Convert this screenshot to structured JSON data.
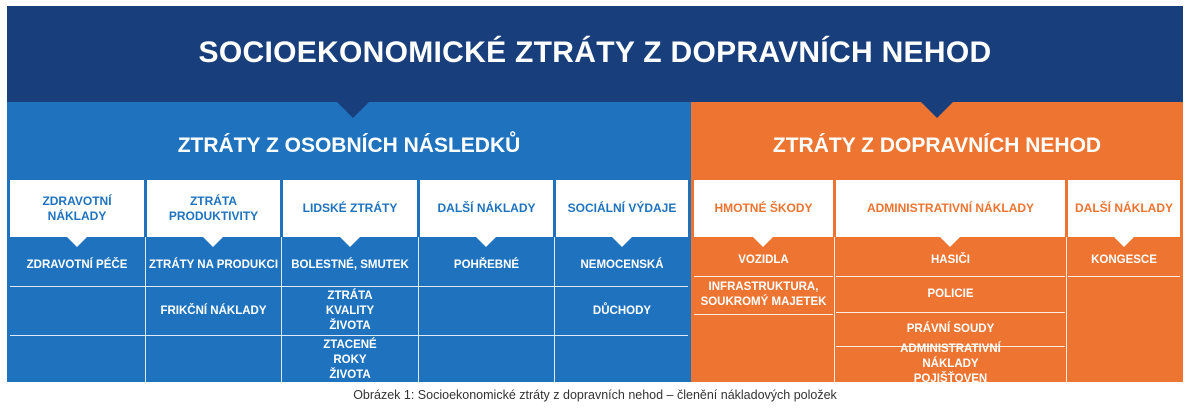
{
  "title": "SOCIOEKONOMICKÉ ZTRÁTY Z DOPRAVNÍCH NEHOD",
  "left_section": {
    "title": "ZTRÁTY Z OSOBNÍCH NÁSLEDKŮ",
    "columns": [
      {
        "header": "ZDRAVOTNÍ NÁKLADY",
        "items": [
          "ZDRAVOTNÍ PÉČE"
        ]
      },
      {
        "header": "ZTRÁTA PRODUKTIVITY",
        "items": [
          "ZTRÁTY NA PRODUKCI",
          "FRIKČNÍ NÁKLADY"
        ]
      },
      {
        "header": "LIDSKÉ ZTRÁTY",
        "items": [
          "BOLESTNÉ, SMUTEK",
          "ZTRÁTA KVALITY ŽIVOTA",
          "ZTACENÉ ROKY ŽIVOTA"
        ]
      },
      {
        "header": "DALŠÍ NÁKLADY",
        "items": [
          "POHŘEBNÉ"
        ]
      },
      {
        "header": "SOCIÁLNÍ VÝDAJE",
        "items": [
          "NEMOCENSKÁ",
          "DŮCHODY"
        ]
      }
    ]
  },
  "right_section": {
    "title": "ZTRÁTY Z DOPRAVNÍCH NEHOD",
    "columns": [
      {
        "header": "HMOTNÉ ŠKODY",
        "items": [
          "VOZIDLA",
          "INFRASTRUKTURA, SOUKROMÝ MAJETEK"
        ]
      },
      {
        "header": "ADMINISTRATIVNÍ NÁKLADY",
        "items": [
          "HASIČI",
          "POLICIE",
          "PRÁVNÍ SOUDY",
          "ADMINISTRATIVNÍ NÁKLADY POJIŠŤOVEN"
        ]
      },
      {
        "header": "DALŠÍ NÁKLADY",
        "items": [
          "KONGESCE"
        ]
      }
    ]
  },
  "caption": "Obrázek 1: Socioekonomické ztráty z dopravních nehod – členění nákladových položek",
  "colors": {
    "navy": "#183f7c",
    "blue": "#1f73be",
    "orange": "#ed7431"
  }
}
